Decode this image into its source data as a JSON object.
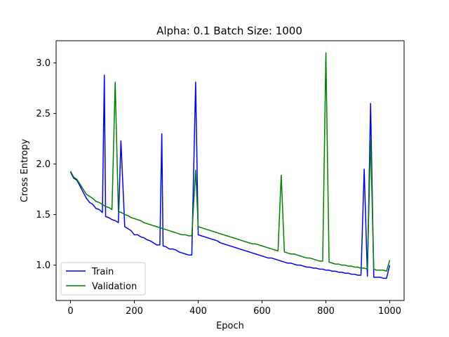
{
  "chart_data": {
    "type": "line",
    "title": "Alpha: 0.1 Batch Size: 1000",
    "xlabel": "Epoch",
    "ylabel": "Cross Entropy",
    "xlim": [
      -45,
      1045
    ],
    "ylim": [
      0.65,
      3.22
    ],
    "xticks": [
      0,
      200,
      400,
      600,
      800,
      1000
    ],
    "yticks": [
      1.0,
      1.5,
      2.0,
      2.5,
      3.0
    ],
    "xtick_labels": [
      "0",
      "200",
      "400",
      "600",
      "800",
      "1000"
    ],
    "ytick_labels": [
      "1.0",
      "1.5",
      "2.0",
      "2.5",
      "3.0"
    ],
    "grid": false,
    "legend_position": "bottom-left",
    "series": [
      {
        "name": "Train",
        "color": "#0000ff",
        "x": [
          0,
          10,
          20,
          30,
          40,
          50,
          60,
          70,
          80,
          90,
          100,
          106,
          110,
          120,
          130,
          140,
          150,
          158,
          170,
          180,
          190,
          200,
          210,
          220,
          230,
          240,
          250,
          260,
          270,
          280,
          286,
          290,
          300,
          310,
          320,
          330,
          340,
          350,
          360,
          370,
          380,
          392,
          400,
          410,
          420,
          430,
          440,
          450,
          460,
          470,
          480,
          490,
          500,
          510,
          520,
          530,
          540,
          550,
          560,
          570,
          580,
          590,
          600,
          610,
          620,
          630,
          640,
          650,
          660,
          670,
          680,
          690,
          700,
          710,
          720,
          730,
          740,
          750,
          760,
          770,
          780,
          790,
          800,
          810,
          820,
          830,
          840,
          850,
          860,
          870,
          880,
          890,
          900,
          910,
          920,
          930,
          940,
          950,
          960,
          970,
          980,
          990,
          1000
        ],
        "values": [
          1.92,
          1.86,
          1.84,
          1.78,
          1.72,
          1.66,
          1.62,
          1.6,
          1.56,
          1.55,
          1.52,
          2.88,
          1.48,
          1.47,
          1.45,
          1.44,
          1.42,
          2.23,
          1.38,
          1.36,
          1.34,
          1.3,
          1.3,
          1.28,
          1.27,
          1.25,
          1.24,
          1.22,
          1.2,
          1.2,
          2.3,
          1.19,
          1.18,
          1.16,
          1.16,
          1.15,
          1.13,
          1.12,
          1.11,
          1.1,
          1.1,
          2.81,
          1.3,
          1.29,
          1.28,
          1.27,
          1.26,
          1.25,
          1.24,
          1.22,
          1.21,
          1.2,
          1.19,
          1.18,
          1.17,
          1.16,
          1.15,
          1.14,
          1.13,
          1.12,
          1.11,
          1.1,
          1.09,
          1.08,
          1.07,
          1.07,
          1.06,
          1.05,
          1.04,
          1.03,
          1.02,
          1.02,
          1.01,
          1.0,
          1.0,
          0.99,
          0.98,
          0.98,
          0.97,
          0.97,
          0.96,
          0.96,
          0.95,
          0.95,
          0.94,
          0.94,
          0.93,
          0.93,
          0.92,
          0.92,
          0.91,
          0.91,
          0.9,
          0.9,
          1.95,
          0.89,
          2.6,
          0.88,
          0.88,
          0.88,
          0.87,
          0.87,
          1.0
        ]
      },
      {
        "name": "Validation",
        "color": "#008000",
        "x": [
          0,
          10,
          20,
          30,
          40,
          50,
          60,
          70,
          80,
          90,
          100,
          110,
          120,
          130,
          140,
          150,
          160,
          170,
          180,
          190,
          200,
          210,
          220,
          230,
          240,
          250,
          260,
          270,
          280,
          290,
          300,
          310,
          320,
          330,
          340,
          350,
          360,
          370,
          380,
          392,
          400,
          410,
          420,
          430,
          440,
          450,
          460,
          470,
          480,
          490,
          500,
          510,
          520,
          530,
          540,
          550,
          560,
          570,
          580,
          590,
          600,
          610,
          620,
          630,
          640,
          650,
          660,
          670,
          680,
          690,
          700,
          710,
          720,
          730,
          740,
          750,
          760,
          770,
          780,
          790,
          800,
          810,
          820,
          830,
          840,
          850,
          860,
          870,
          880,
          890,
          900,
          910,
          920,
          930,
          940,
          950,
          960,
          970,
          980,
          990,
          1000
        ],
        "values": [
          1.93,
          1.87,
          1.85,
          1.8,
          1.75,
          1.7,
          1.68,
          1.66,
          1.63,
          1.62,
          1.6,
          1.58,
          1.57,
          1.55,
          2.81,
          1.53,
          1.52,
          1.5,
          1.49,
          1.47,
          1.46,
          1.45,
          1.44,
          1.42,
          1.41,
          1.4,
          1.39,
          1.38,
          1.37,
          1.36,
          1.35,
          1.34,
          1.33,
          1.32,
          1.31,
          1.3,
          1.3,
          1.29,
          1.29,
          1.94,
          1.38,
          1.37,
          1.36,
          1.35,
          1.34,
          1.33,
          1.32,
          1.31,
          1.3,
          1.29,
          1.28,
          1.27,
          1.26,
          1.25,
          1.24,
          1.23,
          1.22,
          1.21,
          1.21,
          1.2,
          1.19,
          1.18,
          1.17,
          1.16,
          1.15,
          1.14,
          1.89,
          1.13,
          1.12,
          1.11,
          1.11,
          1.1,
          1.09,
          1.08,
          1.07,
          1.07,
          1.06,
          1.05,
          1.04,
          1.04,
          3.1,
          1.03,
          1.02,
          1.01,
          1.01,
          1.0,
          1.0,
          0.99,
          0.99,
          0.98,
          0.98,
          0.97,
          0.97,
          0.96,
          2.25,
          0.96,
          0.95,
          0.95,
          0.95,
          0.94,
          1.05
        ]
      }
    ]
  }
}
